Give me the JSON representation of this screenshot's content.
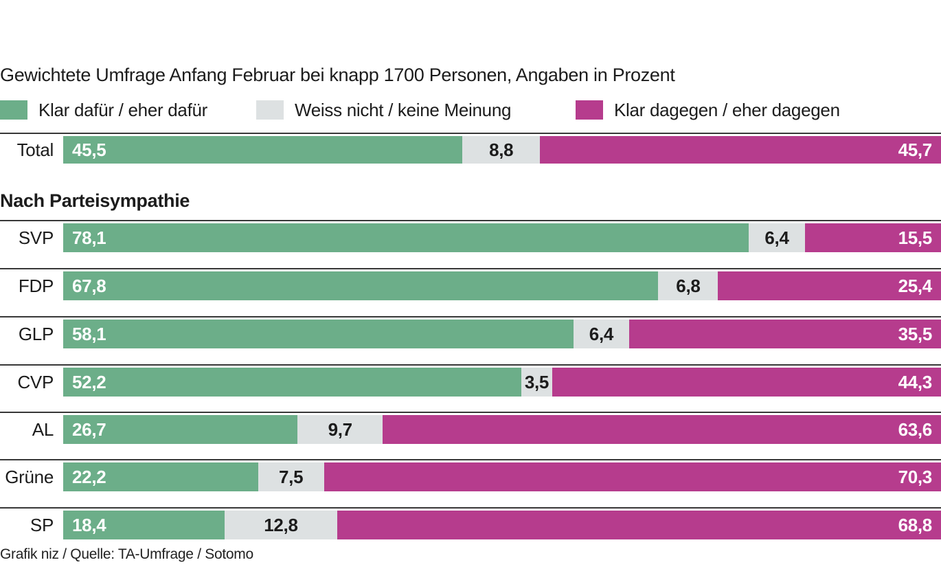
{
  "header": {
    "subtitle": "Gewichtete Umfrage Anfang Februar bei knapp 1700 Personen, Angaben in Prozent"
  },
  "legend": {
    "items": [
      {
        "label": "Klar dafür / eher dafür",
        "color": "#6cae89"
      },
      {
        "label": "Weiss nicht / keine Meinung",
        "color": "#dde1e2"
      },
      {
        "label": "Klar dagegen / eher dagegen",
        "color": "#b63c8d"
      }
    ]
  },
  "section": {
    "header": "Nach Parteisympathie"
  },
  "footer": {
    "credit": "Grafik niz / Quelle: TA-Umfrage / Sotomo"
  },
  "chart_data": {
    "type": "bar",
    "orientation": "horizontal",
    "stacked": true,
    "unit": "percent",
    "x_range": [
      0,
      100
    ],
    "grid": false,
    "legend_position": "top",
    "series_names": [
      "Klar dafür / eher dafür",
      "Weiss nicht / keine Meinung",
      "Klar dagegen / eher dagegen"
    ],
    "colors": {
      "dafur": "#6cae89",
      "weiss_nicht": "#dde1e2",
      "dagegen": "#b63c8d",
      "rule": "#383838"
    },
    "categories": [
      "Total",
      "SVP",
      "FDP",
      "GLP",
      "CVP",
      "AL",
      "Grüne",
      "SP"
    ],
    "rows": [
      {
        "label": "Total",
        "values": [
          "45,5",
          "8,8",
          "45,7"
        ]
      },
      {
        "label": "SVP",
        "values": [
          "78,1",
          "6,4",
          "15,5"
        ]
      },
      {
        "label": "FDP",
        "values": [
          "67,8",
          "6,8",
          "25,4"
        ]
      },
      {
        "label": "GLP",
        "values": [
          "58,1",
          "6,4",
          "35,5"
        ]
      },
      {
        "label": "CVP",
        "values": [
          "52,2",
          "3,5",
          "44,3"
        ]
      },
      {
        "label": "AL",
        "values": [
          "26,7",
          "9,7",
          "63,6"
        ]
      },
      {
        "label": "Grüne",
        "values": [
          "22,2",
          "7,5",
          "70,3"
        ]
      },
      {
        "label": "SP",
        "values": [
          "18,4",
          "12,8",
          "68,8"
        ]
      }
    ]
  }
}
